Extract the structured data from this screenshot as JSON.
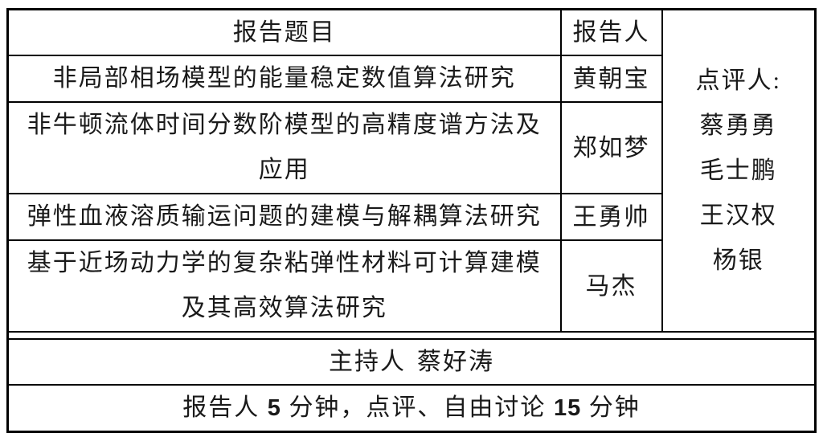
{
  "table": {
    "header": {
      "title_col": "报告题目",
      "presenter_col": "报告人"
    },
    "reviewers": {
      "label": "点评人:",
      "names": [
        "蔡勇勇",
        "毛士鹏",
        "王汉权",
        "杨银"
      ]
    },
    "rows": [
      {
        "title_lines": [
          "非局部相场模型的能量稳定数值算法研究"
        ],
        "presenter": "黄朝宝"
      },
      {
        "title_lines": [
          "非牛顿流体时间分数阶模型的高精度谱方法及",
          "应用"
        ],
        "presenter": "郑如梦"
      },
      {
        "title_lines": [
          "弹性血液溶质输运问题的建模与解耦算法研究"
        ],
        "presenter": "王勇帅"
      },
      {
        "title_lines": [
          "基于近场动力学的复杂粘弹性材料可计算建模",
          "及其高效算法研究"
        ],
        "presenter": "马杰"
      }
    ],
    "host": {
      "label": "主持人",
      "name": "蔡好涛"
    },
    "footer": {
      "parts": [
        "报告人 ",
        "5",
        " 分钟，点评、自由讨论 ",
        "15",
        " 分钟"
      ]
    }
  },
  "colors": {
    "border": "#000000",
    "text": "#1a1a1a",
    "background": "#ffffff"
  }
}
